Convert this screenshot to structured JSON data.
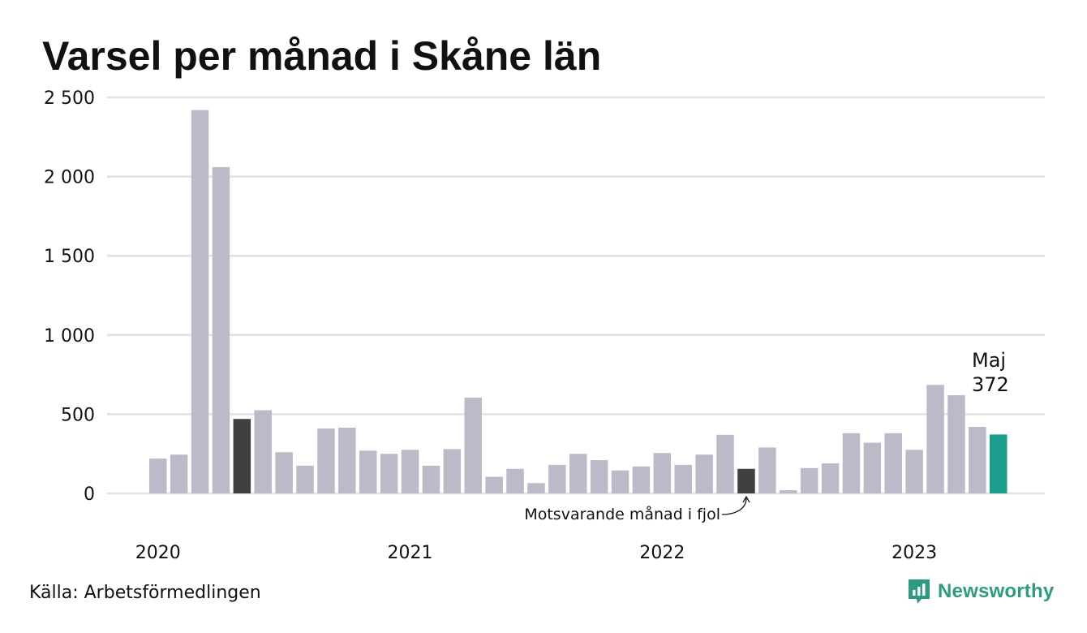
{
  "chart_data": {
    "type": "bar",
    "title": "Varsel per månad i Skåne län",
    "source": "Källa: Arbetsförmedlingen",
    "brand": "Newsworthy",
    "ylim": [
      0,
      2500
    ],
    "yticks": [
      0,
      500,
      1000,
      1500,
      2000,
      2500
    ],
    "ytick_labels": [
      "0",
      "500",
      "1 000",
      "1 500",
      "2 000",
      "2 500"
    ],
    "year_labels": [
      {
        "label": "2020",
        "index": 0
      },
      {
        "label": "2021",
        "index": 12
      },
      {
        "label": "2022",
        "index": 24
      },
      {
        "label": "2023",
        "index": 36
      }
    ],
    "grid": true,
    "values": [
      220,
      245,
      2420,
      2060,
      470,
      525,
      260,
      175,
      410,
      415,
      270,
      250,
      275,
      175,
      280,
      605,
      105,
      155,
      65,
      180,
      250,
      210,
      145,
      170,
      255,
      180,
      245,
      370,
      155,
      290,
      20,
      160,
      190,
      380,
      320,
      380,
      275,
      685,
      620,
      420,
      372
    ],
    "highlight_dark_indices": [
      4,
      28
    ],
    "highlight_current_index": 40,
    "current_label_month": "Maj",
    "current_label_value": "372",
    "annotation": "Motsvarande månad i fjol",
    "colors": {
      "bar": "#bcbac9",
      "dark": "#404040",
      "current": "#1a9e8a",
      "grid": "#e2e2e6",
      "brand": "#2e9a82"
    }
  }
}
